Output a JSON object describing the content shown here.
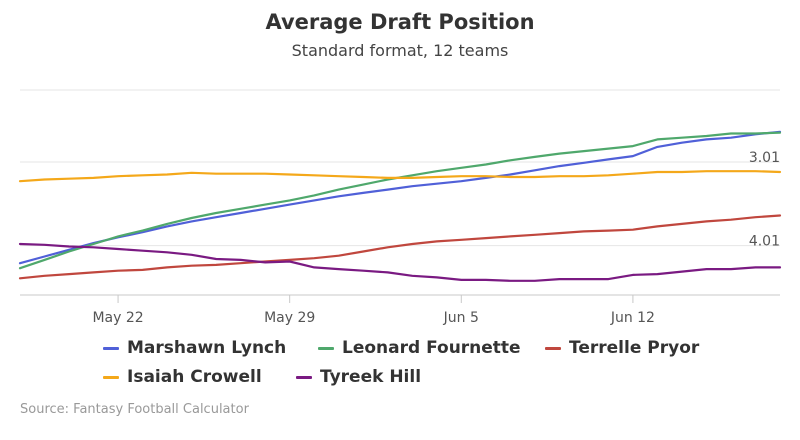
{
  "chart_data": {
    "type": "line",
    "title": "Average Draft Position",
    "subtitle": "Standard format, 12 teams",
    "source": "Source: Fantasy Football Calculator",
    "x_tick_labels": [
      "May 22",
      "May 29",
      "Jun 5",
      "Jun 12"
    ],
    "y_tick_labels": [
      "3.01",
      "4.01"
    ],
    "y_ticks": [
      3.01,
      4.01
    ],
    "y_reversed": true,
    "y_range": [
      2.15,
      4.6
    ],
    "grid": true,
    "legend_position": "bottom",
    "x": [
      "May 18",
      "May 19",
      "May 20",
      "May 21",
      "May 22",
      "May 23",
      "May 24",
      "May 25",
      "May 26",
      "May 27",
      "May 28",
      "May 29",
      "May 30",
      "May 31",
      "Jun 1",
      "Jun 2",
      "Jun 3",
      "Jun 4",
      "Jun 5",
      "Jun 6",
      "Jun 7",
      "Jun 8",
      "Jun 9",
      "Jun 10",
      "Jun 11",
      "Jun 12",
      "Jun 13",
      "Jun 14",
      "Jun 15",
      "Jun 16",
      "Jun 17",
      "Jun 18"
    ],
    "series": [
      {
        "name": "Marshawn Lynch",
        "color": "#5060d8",
        "values": [
          4.22,
          4.14,
          4.06,
          3.98,
          3.91,
          3.85,
          3.78,
          3.72,
          3.67,
          3.62,
          3.57,
          3.52,
          3.47,
          3.42,
          3.38,
          3.34,
          3.3,
          3.27,
          3.24,
          3.2,
          3.16,
          3.11,
          3.06,
          3.02,
          2.98,
          2.94,
          2.83,
          2.78,
          2.74,
          2.72,
          2.68,
          2.65
        ]
      },
      {
        "name": "Leonard Fournette",
        "color": "#4fa86c",
        "values": [
          4.28,
          4.18,
          4.08,
          3.99,
          3.9,
          3.83,
          3.75,
          3.68,
          3.62,
          3.57,
          3.52,
          3.47,
          3.41,
          3.34,
          3.28,
          3.22,
          3.17,
          3.12,
          3.08,
          3.04,
          2.99,
          2.95,
          2.91,
          2.88,
          2.85,
          2.82,
          2.74,
          2.72,
          2.7,
          2.67,
          2.67,
          2.66
        ]
      },
      {
        "name": "Terrelle Pryor",
        "color": "#c0473e",
        "values": [
          4.4,
          4.37,
          4.35,
          4.33,
          4.31,
          4.3,
          4.27,
          4.25,
          4.24,
          4.22,
          4.2,
          4.18,
          4.16,
          4.13,
          4.08,
          4.03,
          3.99,
          3.96,
          3.94,
          3.92,
          3.9,
          3.88,
          3.86,
          3.84,
          3.83,
          3.82,
          3.78,
          3.75,
          3.72,
          3.7,
          3.67,
          3.65
        ]
      },
      {
        "name": "Isaiah Crowell",
        "color": "#f4a81a",
        "values": [
          3.24,
          3.22,
          3.21,
          3.2,
          3.18,
          3.17,
          3.16,
          3.14,
          3.15,
          3.15,
          3.15,
          3.16,
          3.17,
          3.18,
          3.19,
          3.2,
          3.2,
          3.19,
          3.18,
          3.18,
          3.19,
          3.19,
          3.18,
          3.18,
          3.17,
          3.15,
          3.13,
          3.13,
          3.12,
          3.12,
          3.12,
          3.13
        ]
      },
      {
        "name": "Tyreek Hill",
        "color": "#7a1a82",
        "values": [
          3.99,
          4.0,
          4.02,
          4.03,
          4.05,
          4.07,
          4.09,
          4.12,
          4.17,
          4.18,
          4.21,
          4.2,
          4.27,
          4.29,
          4.31,
          4.33,
          4.37,
          4.39,
          4.42,
          4.42,
          4.43,
          4.43,
          4.41,
          4.41,
          4.41,
          4.36,
          4.35,
          4.32,
          4.29,
          4.29,
          4.27,
          4.27
        ]
      }
    ]
  }
}
